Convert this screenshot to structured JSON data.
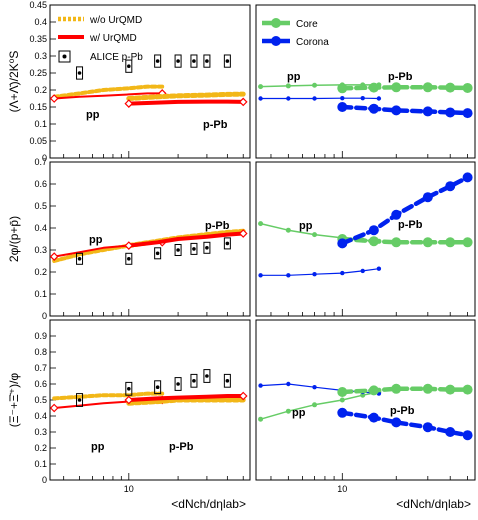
{
  "chart_data": [
    {
      "panel": "top-left",
      "type": "line",
      "ylabel": "(Λ+Λ̄)/2K⁰S",
      "ylim": [
        0,
        0.45
      ],
      "yticks": [
        0,
        0.05,
        0.1,
        0.15,
        0.2,
        0.25,
        0.3,
        0.35,
        0.4,
        0.45
      ],
      "xscale": "log",
      "xlim": [
        3.3,
        55
      ],
      "annotations": [
        "pp",
        "p-Pb"
      ],
      "legend": [
        "w/o UrQMD",
        "w/ UrQMD",
        "ALICE p-Pb"
      ],
      "series": [
        {
          "name": "w/o UrQMD",
          "subset": "pp",
          "x": [
            3.5,
            5,
            7,
            10,
            13,
            16
          ],
          "y": [
            0.18,
            0.19,
            0.2,
            0.205,
            0.21,
            0.21
          ]
        },
        {
          "name": "w/ UrQMD",
          "subset": "pp",
          "x": [
            3.5,
            5,
            7,
            10,
            13,
            16
          ],
          "y": [
            0.175,
            0.18,
            0.183,
            0.187,
            0.19,
            0.19
          ]
        },
        {
          "name": "w/o UrQMD",
          "subset": "p-Pb",
          "x": [
            10,
            15,
            20,
            30,
            40,
            50
          ],
          "y": [
            0.175,
            0.18,
            0.183,
            0.185,
            0.187,
            0.188
          ]
        },
        {
          "name": "w/ UrQMD",
          "subset": "p-Pb",
          "x": [
            10,
            15,
            20,
            30,
            40,
            50
          ],
          "y": [
            0.16,
            0.163,
            0.165,
            0.166,
            0.166,
            0.165
          ]
        },
        {
          "name": "ALICE p-Pb",
          "x": [
            5,
            10,
            15,
            20,
            25,
            30,
            40
          ],
          "y": [
            0.25,
            0.27,
            0.285,
            0.285,
            0.285,
            0.285,
            0.285
          ],
          "err": [
            0.018,
            0.018,
            0.018,
            0.018,
            0.018,
            0.018,
            0.018
          ]
        }
      ]
    },
    {
      "panel": "top-right",
      "type": "line",
      "ylim": [
        0,
        0.45
      ],
      "xscale": "log",
      "xlim": [
        3.3,
        55
      ],
      "annotations": [
        "pp",
        "p-Pb"
      ],
      "legend": [
        "Core",
        "Corona"
      ],
      "series": [
        {
          "name": "Core",
          "subset": "pp",
          "x": [
            3.5,
            5,
            7,
            10,
            13,
            16
          ],
          "y": [
            0.21,
            0.212,
            0.214,
            0.215,
            0.215,
            0.215
          ]
        },
        {
          "name": "Corona",
          "subset": "pp",
          "x": [
            3.5,
            5,
            7,
            10,
            13,
            16
          ],
          "y": [
            0.175,
            0.175,
            0.175,
            0.176,
            0.176,
            0.175
          ]
        },
        {
          "name": "Core",
          "subset": "p-Pb",
          "x": [
            10,
            15,
            20,
            30,
            40,
            50
          ],
          "y": [
            0.205,
            0.207,
            0.208,
            0.208,
            0.207,
            0.206
          ]
        },
        {
          "name": "Corona",
          "subset": "p-Pb",
          "x": [
            10,
            15,
            20,
            30,
            40,
            50
          ],
          "y": [
            0.15,
            0.145,
            0.14,
            0.137,
            0.134,
            0.132
          ]
        }
      ]
    },
    {
      "panel": "mid-left",
      "type": "line",
      "ylabel": "2φ/(p+p̄)",
      "ylim": [
        0,
        0.7
      ],
      "yticks": [
        0,
        0.1,
        0.2,
        0.3,
        0.4,
        0.5,
        0.6,
        0.7
      ],
      "xscale": "log",
      "xlim": [
        3.3,
        55
      ],
      "annotations": [
        "pp",
        "p-Pb"
      ],
      "series": [
        {
          "name": "w/o UrQMD",
          "subset": "pp",
          "x": [
            3.5,
            5,
            7,
            10,
            13,
            16
          ],
          "y": [
            0.25,
            0.28,
            0.3,
            0.32,
            0.335,
            0.34
          ]
        },
        {
          "name": "w/ UrQMD",
          "subset": "pp",
          "x": [
            3.5,
            5,
            7,
            10,
            13,
            16
          ],
          "y": [
            0.27,
            0.29,
            0.31,
            0.32,
            0.33,
            0.335
          ]
        },
        {
          "name": "w/o UrQMD",
          "subset": "p-Pb",
          "x": [
            10,
            15,
            20,
            30,
            40,
            50
          ],
          "y": [
            0.32,
            0.34,
            0.355,
            0.37,
            0.38,
            0.385
          ]
        },
        {
          "name": "w/ UrQMD",
          "subset": "p-Pb",
          "x": [
            10,
            15,
            20,
            30,
            40,
            50
          ],
          "y": [
            0.32,
            0.335,
            0.35,
            0.36,
            0.37,
            0.375
          ]
        },
        {
          "name": "ALICE p-Pb",
          "x": [
            5,
            10,
            15,
            20,
            25,
            30,
            40
          ],
          "y": [
            0.26,
            0.26,
            0.285,
            0.3,
            0.305,
            0.31,
            0.33
          ],
          "err": [
            0.025,
            0.025,
            0.025,
            0.025,
            0.025,
            0.025,
            0.025
          ]
        }
      ]
    },
    {
      "panel": "mid-right",
      "type": "line",
      "ylim": [
        0,
        0.7
      ],
      "xscale": "log",
      "xlim": [
        3.3,
        55
      ],
      "annotations": [
        "pp",
        "p-Pb"
      ],
      "series": [
        {
          "name": "Core",
          "subset": "pp",
          "x": [
            3.5,
            5,
            7,
            10,
            13,
            16
          ],
          "y": [
            0.42,
            0.39,
            0.37,
            0.355,
            0.345,
            0.34
          ]
        },
        {
          "name": "Corona",
          "subset": "pp",
          "x": [
            3.5,
            5,
            7,
            10,
            13,
            16
          ],
          "y": [
            0.185,
            0.185,
            0.19,
            0.195,
            0.205,
            0.215
          ]
        },
        {
          "name": "Core",
          "subset": "p-Pb",
          "x": [
            10,
            15,
            20,
            30,
            40,
            50
          ],
          "y": [
            0.35,
            0.34,
            0.335,
            0.335,
            0.335,
            0.335
          ]
        },
        {
          "name": "Corona",
          "subset": "p-Pb",
          "x": [
            10,
            15,
            20,
            30,
            40,
            50
          ],
          "y": [
            0.33,
            0.39,
            0.46,
            0.54,
            0.59,
            0.63
          ]
        }
      ]
    },
    {
      "panel": "bottom-left",
      "type": "line",
      "ylabel": "(Ξ⁻+Ξ̄⁺)/φ",
      "ylim": [
        0,
        1
      ],
      "yticks": [
        0,
        0.1,
        0.2,
        0.3,
        0.4,
        0.5,
        0.6,
        0.7,
        0.8,
        0.9
      ],
      "xscale": "log",
      "xlim": [
        3.3,
        55
      ],
      "xlabel": "<dNch/dηlab>",
      "xticks": [
        10
      ],
      "annotations": [
        "pp",
        "p-Pb"
      ],
      "series": [
        {
          "name": "w/o UrQMD",
          "subset": "pp",
          "x": [
            3.5,
            5,
            7,
            10,
            13,
            16
          ],
          "y": [
            0.51,
            0.52,
            0.53,
            0.53,
            0.54,
            0.54
          ]
        },
        {
          "name": "w/ UrQMD",
          "subset": "pp",
          "x": [
            3.5,
            5,
            7,
            10,
            13,
            16
          ],
          "y": [
            0.45,
            0.465,
            0.48,
            0.49,
            0.5,
            0.5
          ]
        },
        {
          "name": "w/o UrQMD",
          "subset": "p-Pb",
          "x": [
            10,
            15,
            20,
            30,
            40,
            50
          ],
          "y": [
            0.48,
            0.49,
            0.5,
            0.5,
            0.5,
            0.5
          ]
        },
        {
          "name": "w/ UrQMD",
          "subset": "p-Pb",
          "x": [
            10,
            15,
            20,
            30,
            40,
            50
          ],
          "y": [
            0.5,
            0.51,
            0.515,
            0.52,
            0.525,
            0.525
          ]
        },
        {
          "name": "ALICE p-Pb",
          "x": [
            5,
            10,
            15,
            20,
            25,
            30,
            40
          ],
          "y": [
            0.5,
            0.57,
            0.58,
            0.6,
            0.62,
            0.65,
            0.62
          ],
          "err": [
            0.04,
            0.04,
            0.04,
            0.04,
            0.04,
            0.04,
            0.04
          ]
        }
      ]
    },
    {
      "panel": "bottom-right",
      "type": "line",
      "ylim": [
        0,
        1
      ],
      "xscale": "log",
      "xlim": [
        3.3,
        55
      ],
      "xlabel": "<dNch/dηlab>",
      "xticks": [
        10
      ],
      "annotations": [
        "pp",
        "p-Pb"
      ],
      "series": [
        {
          "name": "Core",
          "subset": "pp",
          "x": [
            3.5,
            5,
            7,
            10,
            13,
            16
          ],
          "y": [
            0.38,
            0.43,
            0.47,
            0.5,
            0.53,
            0.55
          ]
        },
        {
          "name": "Corona",
          "subset": "pp",
          "x": [
            3.5,
            5,
            7,
            10,
            13,
            16
          ],
          "y": [
            0.59,
            0.6,
            0.58,
            0.56,
            0.55,
            0.54
          ]
        },
        {
          "name": "Core",
          "subset": "p-Pb",
          "x": [
            10,
            15,
            20,
            30,
            40,
            50
          ],
          "y": [
            0.55,
            0.56,
            0.57,
            0.57,
            0.565,
            0.565
          ]
        },
        {
          "name": "Corona",
          "subset": "p-Pb",
          "x": [
            10,
            15,
            20,
            30,
            40,
            50
          ],
          "y": [
            0.42,
            0.39,
            0.36,
            0.33,
            0.3,
            0.28
          ]
        }
      ]
    }
  ],
  "style": {
    "colors": {
      "wo_urqmd": "#f2b718",
      "w_urqmd": "#ff0000",
      "core": "#66cc66",
      "corona": "#0022ee",
      "data": "#000000"
    }
  }
}
